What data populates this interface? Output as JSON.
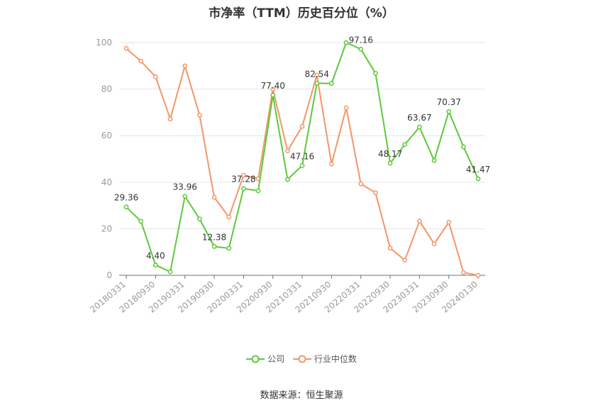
{
  "chart_data": {
    "type": "line",
    "title": "市净率（TTM）历史百分位（%）",
    "ylim": [
      0,
      100
    ],
    "yticks": [
      0,
      20,
      40,
      60,
      80,
      100
    ],
    "grid": true,
    "legend_position": "bottom",
    "x": [
      "20180331",
      "20180630",
      "20180930",
      "20181231",
      "20190331",
      "20190630",
      "20190930",
      "20191231",
      "20200331",
      "20200630",
      "20200930",
      "20201231",
      "20210331",
      "20210630",
      "20210930",
      "20211231",
      "20220331",
      "20220630",
      "20220930",
      "20221231",
      "20230331",
      "20230630",
      "20230930",
      "20231231",
      "20240130"
    ],
    "xtick_labels": [
      "20180331",
      "20180930",
      "20190331",
      "20190930",
      "20200331",
      "20200930",
      "20210331",
      "20210930",
      "20220331",
      "20220930",
      "20230331",
      "20230930",
      "20240130"
    ],
    "series": [
      {
        "name": "公司",
        "color": "#5cc93a",
        "values": [
          29.36,
          23.2,
          4.4,
          1.5,
          33.96,
          24.2,
          12.38,
          11.6,
          37.28,
          36.3,
          77.4,
          41.2,
          47.16,
          82.54,
          82.4,
          100.0,
          97.16,
          86.8,
          48.17,
          56.2,
          63.67,
          49.3,
          70.37,
          55.2,
          41.47
        ],
        "labels": {
          "0": "29.36",
          "2": "4.40",
          "4": "33.96",
          "6": "12.38",
          "8": "37.28",
          "10": "77.40",
          "12": "47.16",
          "13": "82.54",
          "16": "97.16",
          "18": "48.17",
          "20": "63.67",
          "22": "70.37",
          "24": "41.47"
        }
      },
      {
        "name": "行业中位数",
        "color": "#f4956a",
        "values": [
          97.5,
          92.0,
          85.3,
          67.2,
          90.0,
          68.8,
          33.5,
          25.0,
          43.0,
          41.5,
          80.0,
          53.5,
          64.0,
          86.0,
          47.8,
          72.0,
          39.3,
          35.5,
          11.7,
          6.5,
          23.3,
          13.5,
          22.8,
          1.2,
          0.0
        ]
      }
    ]
  },
  "legend": {
    "items": [
      {
        "label": "公司",
        "color": "#5cc93a"
      },
      {
        "label": "行业中位数",
        "color": "#f4956a"
      }
    ]
  },
  "footer": {
    "source": "数据来源：恒生聚源"
  }
}
